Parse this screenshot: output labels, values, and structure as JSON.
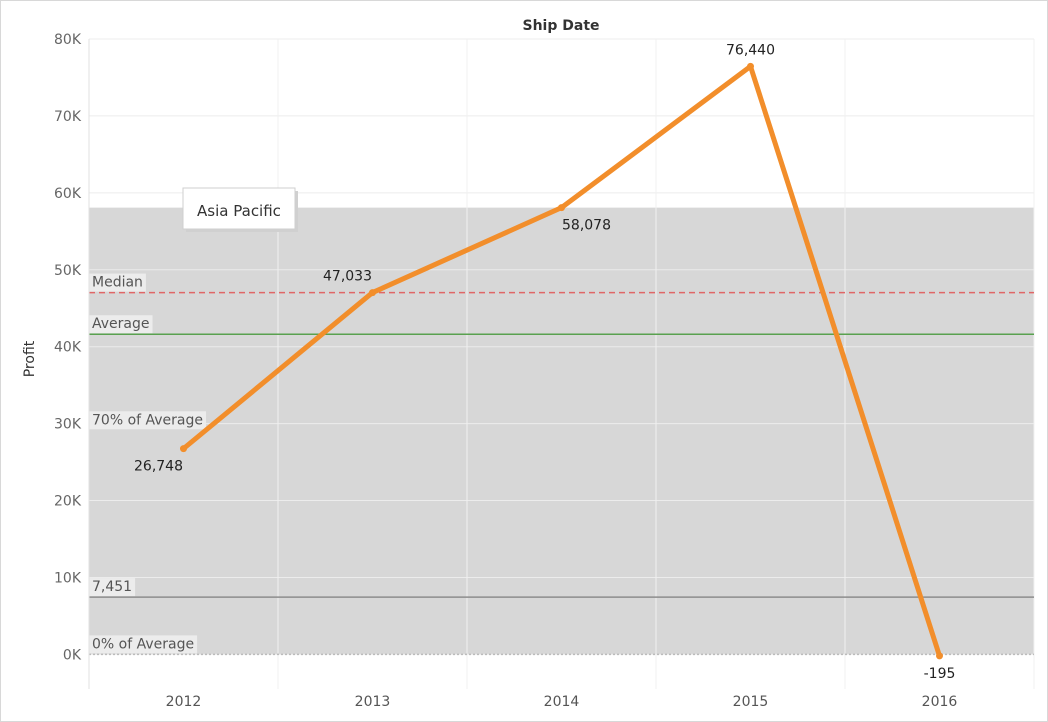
{
  "chart_data": {
    "type": "line",
    "title": "Ship Date",
    "ylabel": "Profit",
    "xlabel": "",
    "categories": [
      "2012",
      "2013",
      "2014",
      "2015",
      "2016"
    ],
    "series": [
      {
        "name": "Asia Pacific",
        "values": [
          26748,
          47033,
          58078,
          76440,
          -195
        ],
        "data_labels": [
          "26,748",
          "47,033",
          "58,078",
          "76,440",
          "-195"
        ],
        "color": "#f28e2b"
      }
    ],
    "ylim": [
      -4500,
      80000
    ],
    "yticks": [
      0,
      10000,
      20000,
      30000,
      40000,
      50000,
      60000,
      70000,
      80000
    ],
    "ytick_labels": [
      "0K",
      "10K",
      "20K",
      "30K",
      "40K",
      "50K",
      "60K",
      "70K",
      "80K"
    ],
    "grid": true,
    "reference_band": {
      "from": 0,
      "to": 58078,
      "color": "#d7d7d7"
    },
    "reference_lines": [
      {
        "label": "Median",
        "value": 47033,
        "style": "dashed",
        "color": "#e06666"
      },
      {
        "label": "Average",
        "value": 41621,
        "style": "solid",
        "color": "#59a14f"
      },
      {
        "label": "70% of Average",
        "value": 29135,
        "style": "none",
        "color": "#999999"
      },
      {
        "label": "7,451",
        "value": 7451,
        "style": "solid",
        "color": "#8c8c8c"
      },
      {
        "label": "0% of Average",
        "value": 0,
        "style": "dotted",
        "color": "#bbbbbb"
      }
    ],
    "annotation": "Asia Pacific"
  }
}
